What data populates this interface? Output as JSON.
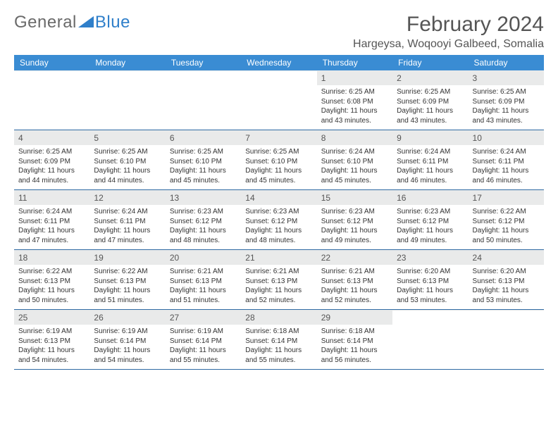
{
  "logo": {
    "part1": "General",
    "part2": "Blue"
  },
  "title": "February 2024",
  "location": "Hargeysa, Woqooyi Galbeed, Somalia",
  "weekday_labels": [
    "Sunday",
    "Monday",
    "Tuesday",
    "Wednesday",
    "Thursday",
    "Friday",
    "Saturday"
  ],
  "colors": {
    "header_bg": "#3a8cd3",
    "header_text": "#ffffff",
    "daynum_bg": "#e9eaea",
    "body_text": "#333333",
    "row_border": "#2f6aa3",
    "page_bg": "#ffffff",
    "title_text": "#555555",
    "logo_grey": "#6a6a6a",
    "logo_blue": "#2f7fca"
  },
  "typography": {
    "title_fontsize": 30,
    "location_fontsize": 16,
    "weekday_fontsize": 12,
    "daynum_fontsize": 12,
    "body_fontsize": 10,
    "logo_fontsize": 24
  },
  "layout": {
    "columns": 7,
    "rows": 5,
    "leading_blanks": 4
  },
  "days": [
    {
      "n": "1",
      "sunrise": "6:25 AM",
      "sunset": "6:08 PM",
      "daylight": "11 hours and 43 minutes."
    },
    {
      "n": "2",
      "sunrise": "6:25 AM",
      "sunset": "6:09 PM",
      "daylight": "11 hours and 43 minutes."
    },
    {
      "n": "3",
      "sunrise": "6:25 AM",
      "sunset": "6:09 PM",
      "daylight": "11 hours and 43 minutes."
    },
    {
      "n": "4",
      "sunrise": "6:25 AM",
      "sunset": "6:09 PM",
      "daylight": "11 hours and 44 minutes."
    },
    {
      "n": "5",
      "sunrise": "6:25 AM",
      "sunset": "6:10 PM",
      "daylight": "11 hours and 44 minutes."
    },
    {
      "n": "6",
      "sunrise": "6:25 AM",
      "sunset": "6:10 PM",
      "daylight": "11 hours and 45 minutes."
    },
    {
      "n": "7",
      "sunrise": "6:25 AM",
      "sunset": "6:10 PM",
      "daylight": "11 hours and 45 minutes."
    },
    {
      "n": "8",
      "sunrise": "6:24 AM",
      "sunset": "6:10 PM",
      "daylight": "11 hours and 45 minutes."
    },
    {
      "n": "9",
      "sunrise": "6:24 AM",
      "sunset": "6:11 PM",
      "daylight": "11 hours and 46 minutes."
    },
    {
      "n": "10",
      "sunrise": "6:24 AM",
      "sunset": "6:11 PM",
      "daylight": "11 hours and 46 minutes."
    },
    {
      "n": "11",
      "sunrise": "6:24 AM",
      "sunset": "6:11 PM",
      "daylight": "11 hours and 47 minutes."
    },
    {
      "n": "12",
      "sunrise": "6:24 AM",
      "sunset": "6:11 PM",
      "daylight": "11 hours and 47 minutes."
    },
    {
      "n": "13",
      "sunrise": "6:23 AM",
      "sunset": "6:12 PM",
      "daylight": "11 hours and 48 minutes."
    },
    {
      "n": "14",
      "sunrise": "6:23 AM",
      "sunset": "6:12 PM",
      "daylight": "11 hours and 48 minutes."
    },
    {
      "n": "15",
      "sunrise": "6:23 AM",
      "sunset": "6:12 PM",
      "daylight": "11 hours and 49 minutes."
    },
    {
      "n": "16",
      "sunrise": "6:23 AM",
      "sunset": "6:12 PM",
      "daylight": "11 hours and 49 minutes."
    },
    {
      "n": "17",
      "sunrise": "6:22 AM",
      "sunset": "6:12 PM",
      "daylight": "11 hours and 50 minutes."
    },
    {
      "n": "18",
      "sunrise": "6:22 AM",
      "sunset": "6:13 PM",
      "daylight": "11 hours and 50 minutes."
    },
    {
      "n": "19",
      "sunrise": "6:22 AM",
      "sunset": "6:13 PM",
      "daylight": "11 hours and 51 minutes."
    },
    {
      "n": "20",
      "sunrise": "6:21 AM",
      "sunset": "6:13 PM",
      "daylight": "11 hours and 51 minutes."
    },
    {
      "n": "21",
      "sunrise": "6:21 AM",
      "sunset": "6:13 PM",
      "daylight": "11 hours and 52 minutes."
    },
    {
      "n": "22",
      "sunrise": "6:21 AM",
      "sunset": "6:13 PM",
      "daylight": "11 hours and 52 minutes."
    },
    {
      "n": "23",
      "sunrise": "6:20 AM",
      "sunset": "6:13 PM",
      "daylight": "11 hours and 53 minutes."
    },
    {
      "n": "24",
      "sunrise": "6:20 AM",
      "sunset": "6:13 PM",
      "daylight": "11 hours and 53 minutes."
    },
    {
      "n": "25",
      "sunrise": "6:19 AM",
      "sunset": "6:13 PM",
      "daylight": "11 hours and 54 minutes."
    },
    {
      "n": "26",
      "sunrise": "6:19 AM",
      "sunset": "6:14 PM",
      "daylight": "11 hours and 54 minutes."
    },
    {
      "n": "27",
      "sunrise": "6:19 AM",
      "sunset": "6:14 PM",
      "daylight": "11 hours and 55 minutes."
    },
    {
      "n": "28",
      "sunrise": "6:18 AM",
      "sunset": "6:14 PM",
      "daylight": "11 hours and 55 minutes."
    },
    {
      "n": "29",
      "sunrise": "6:18 AM",
      "sunset": "6:14 PM",
      "daylight": "11 hours and 56 minutes."
    }
  ],
  "labels": {
    "sunrise": "Sunrise:",
    "sunset": "Sunset:",
    "daylight": "Daylight:"
  }
}
